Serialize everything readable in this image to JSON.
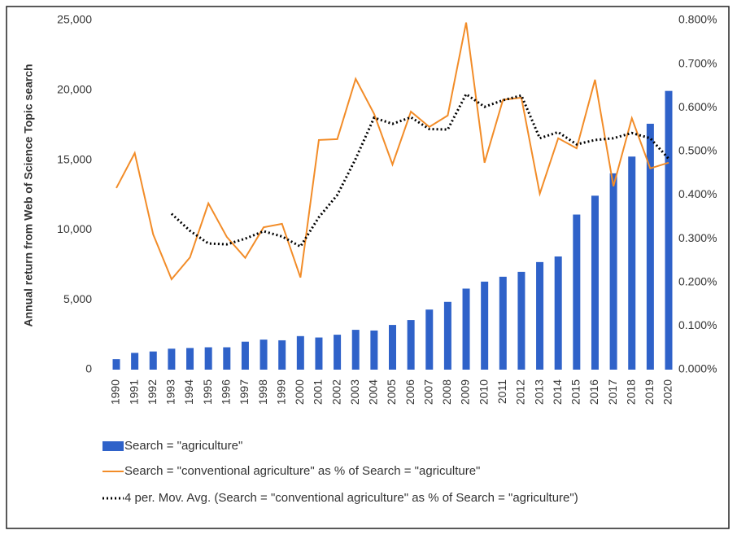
{
  "chart_data": {
    "type": "bar-line",
    "y_label": "Annual return from Web of Science Topic search",
    "categories": [
      "1990",
      "1991",
      "1992",
      "1993",
      "1994",
      "1995",
      "1996",
      "1997",
      "1998",
      "1999",
      "2000",
      "2001",
      "2002",
      "2003",
      "2004",
      "2005",
      "2006",
      "2007",
      "2008",
      "2009",
      "2010",
      "2011",
      "2012",
      "2013",
      "2014",
      "2015",
      "2016",
      "2017",
      "2018",
      "2019",
      "2020"
    ],
    "series": [
      {
        "name": "Search = \"agriculture\"",
        "type": "bar",
        "color": "#2f62c9",
        "values": [
          750,
          1200,
          1300,
          1500,
          1550,
          1600,
          1600,
          2000,
          2150,
          2100,
          2400,
          2300,
          2500,
          2850,
          2800,
          3200,
          3550,
          4300,
          4850,
          5800,
          6300,
          6650,
          7000,
          7700,
          8100,
          11100,
          12450,
          14050,
          15250,
          17600,
          19950
        ]
      },
      {
        "name": "Search = \"conventional agriculture\" as % of Search = \"agriculture\"",
        "type": "line",
        "axis": "y2",
        "color": "#f28c28",
        "values": [
          0.416,
          0.496,
          0.31,
          0.207,
          0.257,
          0.381,
          0.304,
          0.256,
          0.326,
          0.334,
          0.211,
          0.526,
          0.528,
          0.666,
          0.586,
          0.47,
          0.591,
          0.556,
          0.582,
          0.795,
          0.474,
          0.618,
          0.623,
          0.403,
          0.53,
          0.507,
          0.664,
          0.42,
          0.576,
          0.461,
          0.474
        ]
      },
      {
        "name": "4 per. Mov. Avg. (Search = \"conventional agriculture\" as % of Search = \"agriculture\")",
        "type": "dotted-line",
        "axis": "y2",
        "color": "#000000",
        "values": [
          null,
          null,
          null,
          0.357,
          0.318,
          0.289,
          0.287,
          0.3,
          0.317,
          0.305,
          0.282,
          0.349,
          0.4,
          0.483,
          0.577,
          0.563,
          0.578,
          0.551,
          0.55,
          0.631,
          0.602,
          0.617,
          0.628,
          0.53,
          0.544,
          0.516,
          0.526,
          0.53,
          0.542,
          0.53,
          0.483
        ]
      }
    ],
    "ylim": [
      0,
      25000
    ],
    "yticks": [
      0,
      {
        "value": 5000,
        "label": "5,000"
      },
      {
        "value": 10000,
        "label": "10,000"
      },
      {
        "value": 15000,
        "label": "15,000"
      },
      {
        "value": 20000,
        "label": "20,000"
      },
      {
        "value": 25000,
        "label": "25,000"
      }
    ],
    "y2lim": [
      0,
      0.8
    ],
    "y2ticks": [
      {
        "value": 0,
        "label": "0.000%"
      },
      {
        "value": 0.1,
        "label": "0.100%"
      },
      {
        "value": 0.2,
        "label": "0.200%"
      },
      {
        "value": 0.3,
        "label": "0.300%"
      },
      {
        "value": 0.4,
        "label": "0.400%"
      },
      {
        "value": 0.5,
        "label": "0.500%"
      },
      {
        "value": 0.6,
        "label": "0.600%"
      },
      {
        "value": 0.7,
        "label": "0.700%"
      },
      {
        "value": 0.8,
        "label": "0.800%"
      }
    ],
    "grid": false,
    "legend": "bottom"
  }
}
